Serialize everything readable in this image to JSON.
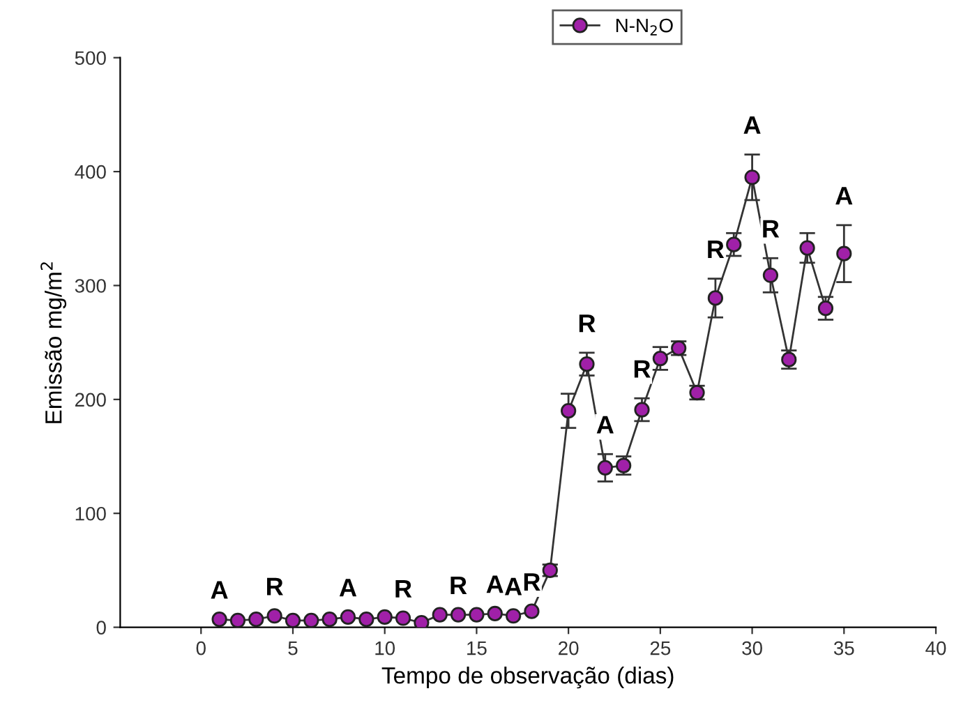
{
  "chart_data": {
    "type": "line",
    "xlabel": "Tempo de observação (dias)",
    "ylabel": "Emissão mg/m$^{2}$",
    "x": [
      1,
      2,
      3,
      4,
      5,
      6,
      7,
      8,
      9,
      10,
      11,
      12,
      13,
      14,
      15,
      16,
      17,
      18,
      19,
      20,
      21,
      22,
      23,
      24,
      25,
      26,
      27,
      28,
      29,
      30,
      31,
      32,
      33,
      34,
      35
    ],
    "series": [
      {
        "name": "N-N$_{2}$O",
        "color": "#a020a8",
        "marker": "circle",
        "values": [
          7,
          6,
          7,
          10,
          6,
          6,
          7,
          9,
          7,
          9,
          8,
          4,
          11,
          11,
          11,
          12,
          10,
          14,
          50,
          190,
          231,
          140,
          142,
          191,
          236,
          245,
          206,
          289,
          336,
          395,
          309,
          235,
          333,
          280,
          328
        ],
        "errors": [
          null,
          null,
          null,
          null,
          null,
          null,
          null,
          null,
          null,
          null,
          null,
          null,
          null,
          null,
          null,
          null,
          null,
          null,
          5,
          15,
          10,
          12,
          8,
          10,
          10,
          6,
          6,
          17,
          10,
          20,
          15,
          8,
          13,
          10,
          25
        ]
      }
    ],
    "xlim": [
      -4.4,
      40
    ],
    "xticks": [
      0,
      5,
      10,
      15,
      20,
      25,
      30,
      35,
      40
    ],
    "ylim": [
      0,
      500
    ],
    "yticks": [
      0,
      100,
      200,
      300,
      400,
      500
    ],
    "grid": false,
    "legend": "top right",
    "line_style": "solid",
    "annotations": [
      {
        "text": "A",
        "x": 1,
        "y": 7
      },
      {
        "text": "R",
        "x": 4,
        "y": 10
      },
      {
        "text": "A",
        "x": 8,
        "y": 9
      },
      {
        "text": "R",
        "x": 11,
        "y": 8
      },
      {
        "text": "R",
        "x": 14,
        "y": 11
      },
      {
        "text": "A",
        "x": 16,
        "y": 12
      },
      {
        "text": "A",
        "x": 17,
        "y": 10
      },
      {
        "text": "R",
        "x": 18,
        "y": 14
      },
      {
        "text": "R",
        "x": 21,
        "y": 231
      },
      {
        "text": "A",
        "x": 22,
        "y": 140
      },
      {
        "text": "R",
        "x": 24,
        "y": 191
      },
      {
        "text": "R",
        "x": 28,
        "y": 289
      },
      {
        "text": "A",
        "x": 30,
        "y": 395
      },
      {
        "text": "R",
        "x": 31,
        "y": 309
      },
      {
        "text": "A",
        "x": 35,
        "y": 328
      }
    ]
  }
}
